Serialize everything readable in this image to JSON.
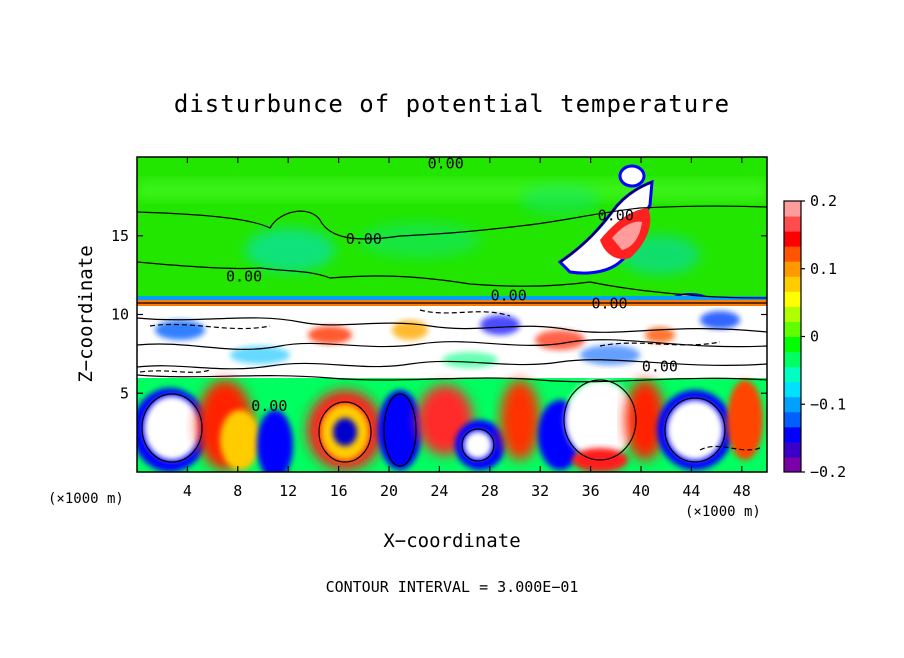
{
  "chart_data": {
    "type": "heatmap",
    "title": "disturbunce of potential temperature",
    "xlabel": "X−coordinate",
    "ylabel": "Z−coordinate",
    "x_unit": "(×1000 m)",
    "y_unit": "(×1000 m)",
    "xlim": [
      0,
      50
    ],
    "ylim": [
      0,
      20
    ],
    "x_ticks": [
      4,
      8,
      12,
      16,
      20,
      24,
      28,
      32,
      36,
      40,
      44,
      48
    ],
    "x_tick_labels": [
      "4",
      "8",
      "12",
      "16",
      "20",
      "24",
      "28",
      "32",
      "36",
      "40",
      "44",
      "48"
    ],
    "y_ticks": [
      5,
      10,
      15
    ],
    "y_tick_labels": [
      "5",
      "10",
      "15"
    ],
    "colorbar": {
      "min": -0.2,
      "max": 0.2,
      "ticks": [
        0.2,
        0.1,
        0,
        -0.1,
        -0.2
      ],
      "tick_labels": [
        "0.2",
        "0.1",
        "0",
        "−0.1",
        "−0.2"
      ],
      "colors": [
        "#7a00a8",
        "#3a00c8",
        "#0000ff",
        "#0060ff",
        "#00a0ff",
        "#00e0ff",
        "#00ffc0",
        "#00ff60",
        "#00ff00",
        "#60ff00",
        "#b0ff00",
        "#ffff00",
        "#ffcc00",
        "#ff9900",
        "#ff5500",
        "#ff0000",
        "#ff4d4d",
        "#ff9c9c"
      ]
    },
    "contour_labels": [
      {
        "text": "0.00",
        "x": 24.5,
        "z": 19.6
      },
      {
        "text": "0.00",
        "x": 18.0,
        "z": 14.8
      },
      {
        "text": "0.00",
        "x": 8.5,
        "z": 12.4
      },
      {
        "text": "0.00",
        "x": 29.5,
        "z": 11.2
      },
      {
        "text": "0.00",
        "x": 37.5,
        "z": 10.7
      },
      {
        "text": "0.00",
        "x": 38.0,
        "z": 16.3
      },
      {
        "text": "0.00",
        "x": 41.5,
        "z": 6.7
      },
      {
        "text": "0.00",
        "x": 10.5,
        "z": 4.2
      }
    ],
    "contour_interval_text": "CONTOUR INTERVAL = 3.000E−01"
  }
}
